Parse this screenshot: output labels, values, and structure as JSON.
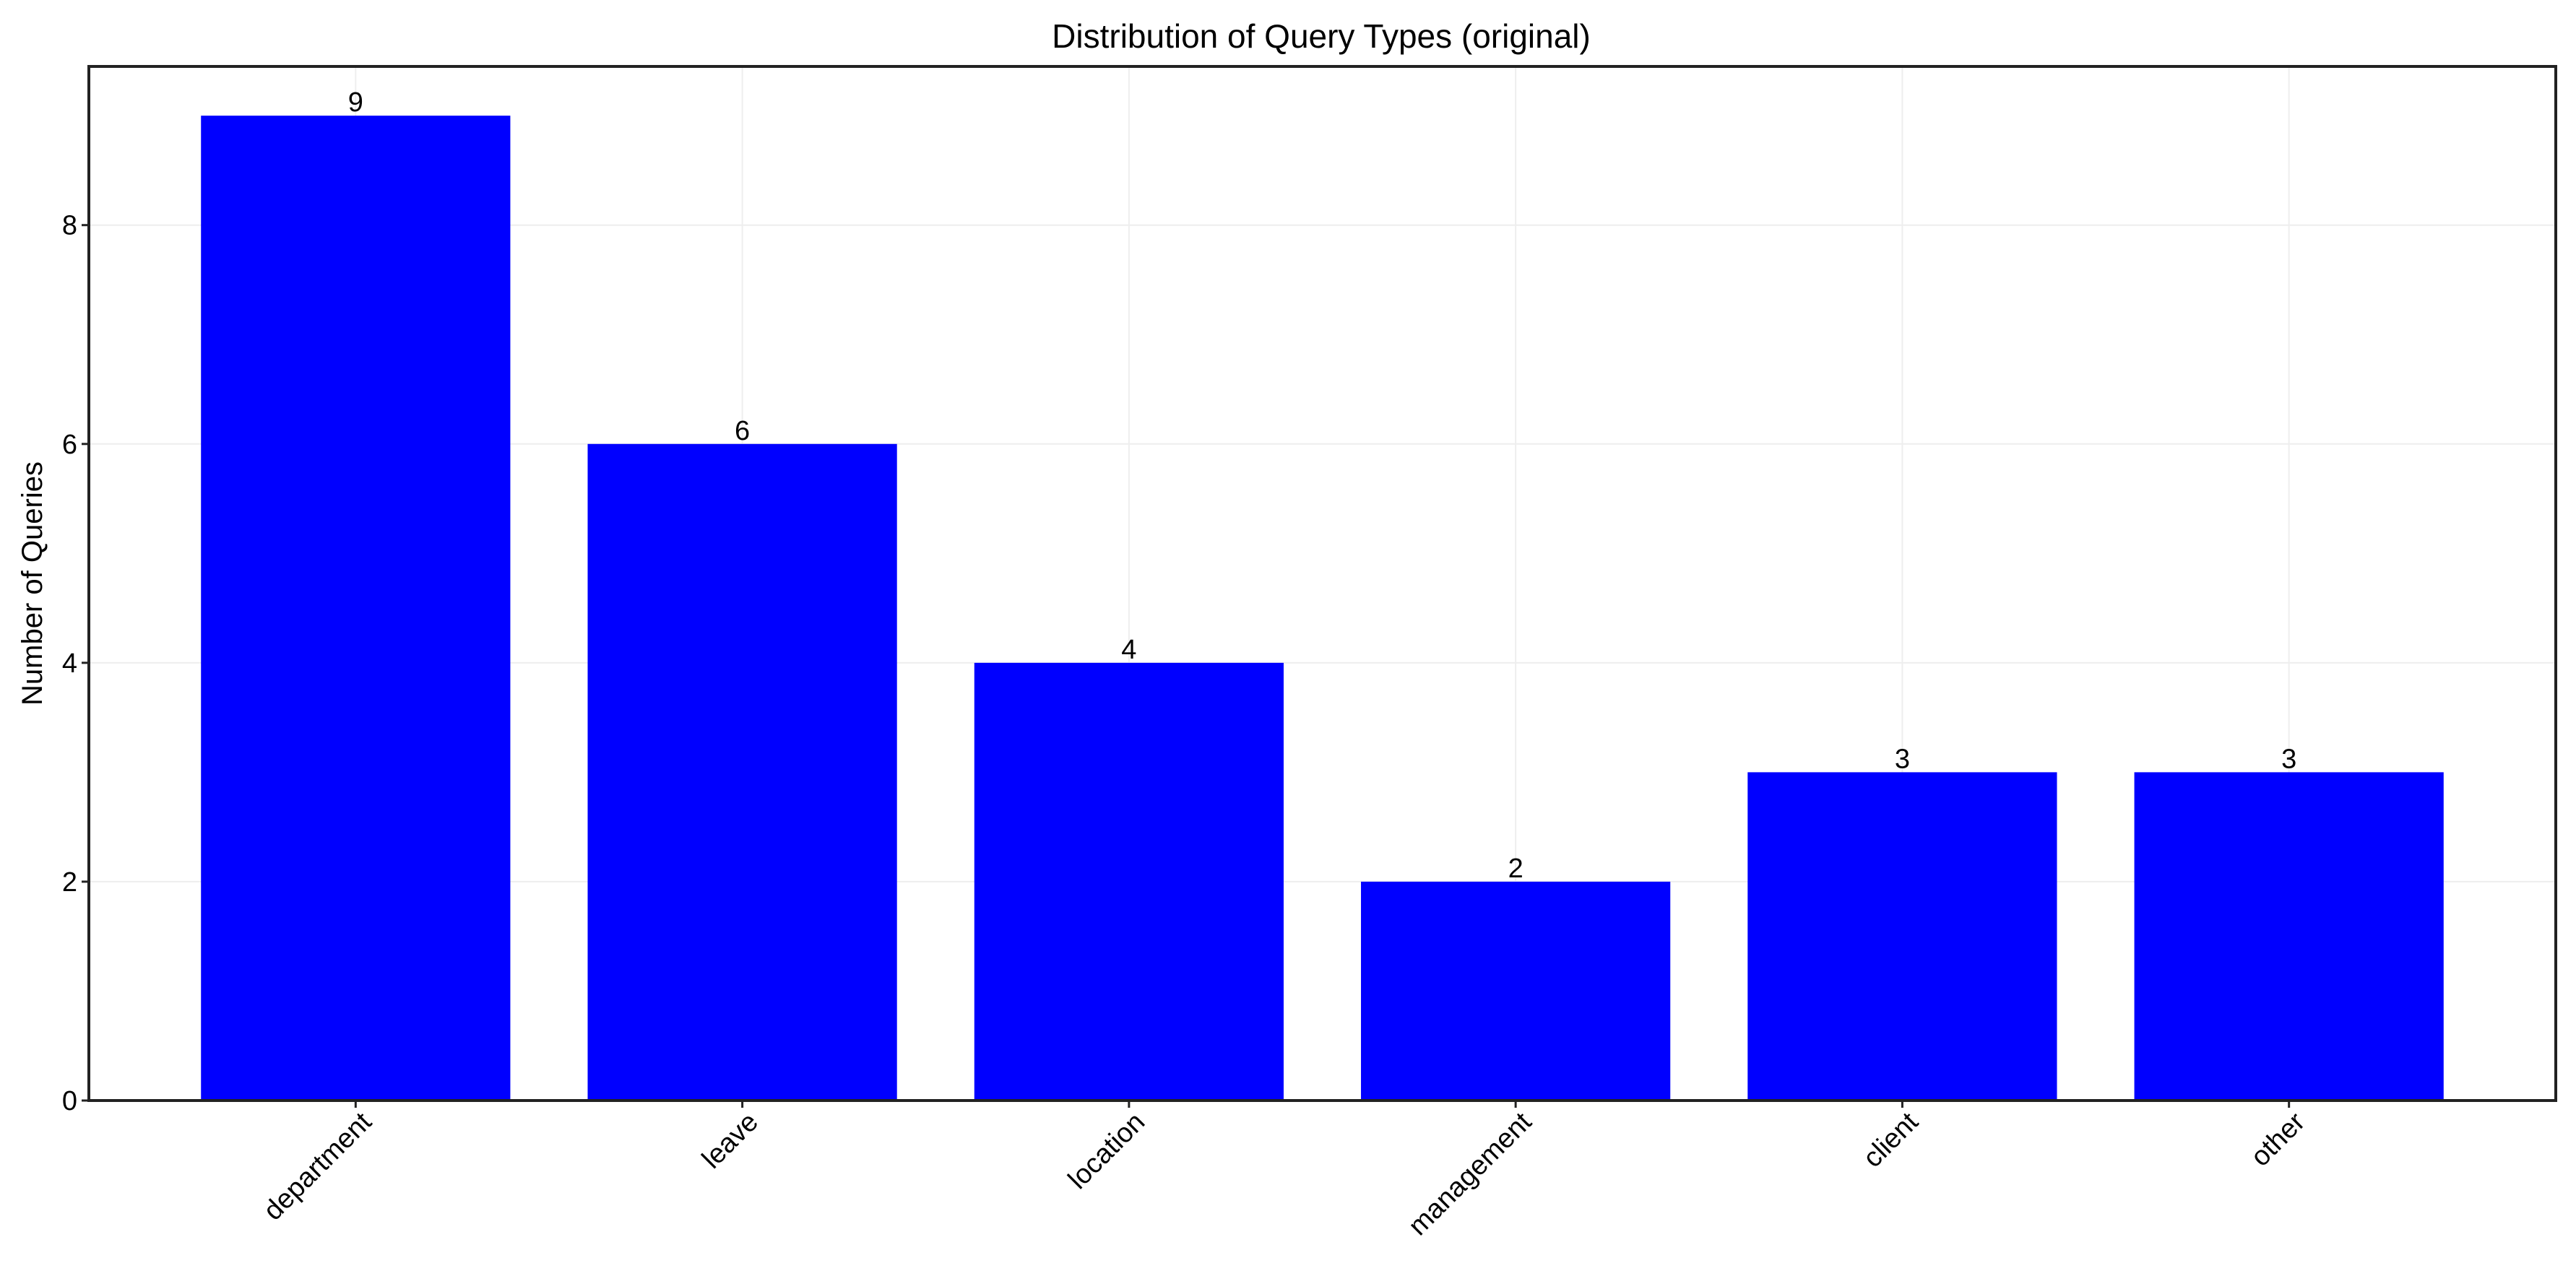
{
  "chart_data": {
    "type": "bar",
    "title": "Distribution of Query Types (original)",
    "xlabel": "",
    "ylabel": "Number of Queries",
    "categories": [
      "department",
      "leave",
      "location",
      "management",
      "client",
      "other"
    ],
    "values": [
      9,
      6,
      4,
      2,
      3,
      3
    ],
    "data_labels": [
      "9",
      "6",
      "4",
      "2",
      "3",
      "3"
    ],
    "ylim": [
      0,
      9.45
    ],
    "yticks": [
      0,
      2,
      4,
      6,
      8
    ],
    "ytick_labels": [
      "0",
      "2",
      "4",
      "6",
      "8"
    ],
    "grid": true,
    "bar_color": "#0000ff",
    "x_tick_rotation": "45 degrees"
  }
}
